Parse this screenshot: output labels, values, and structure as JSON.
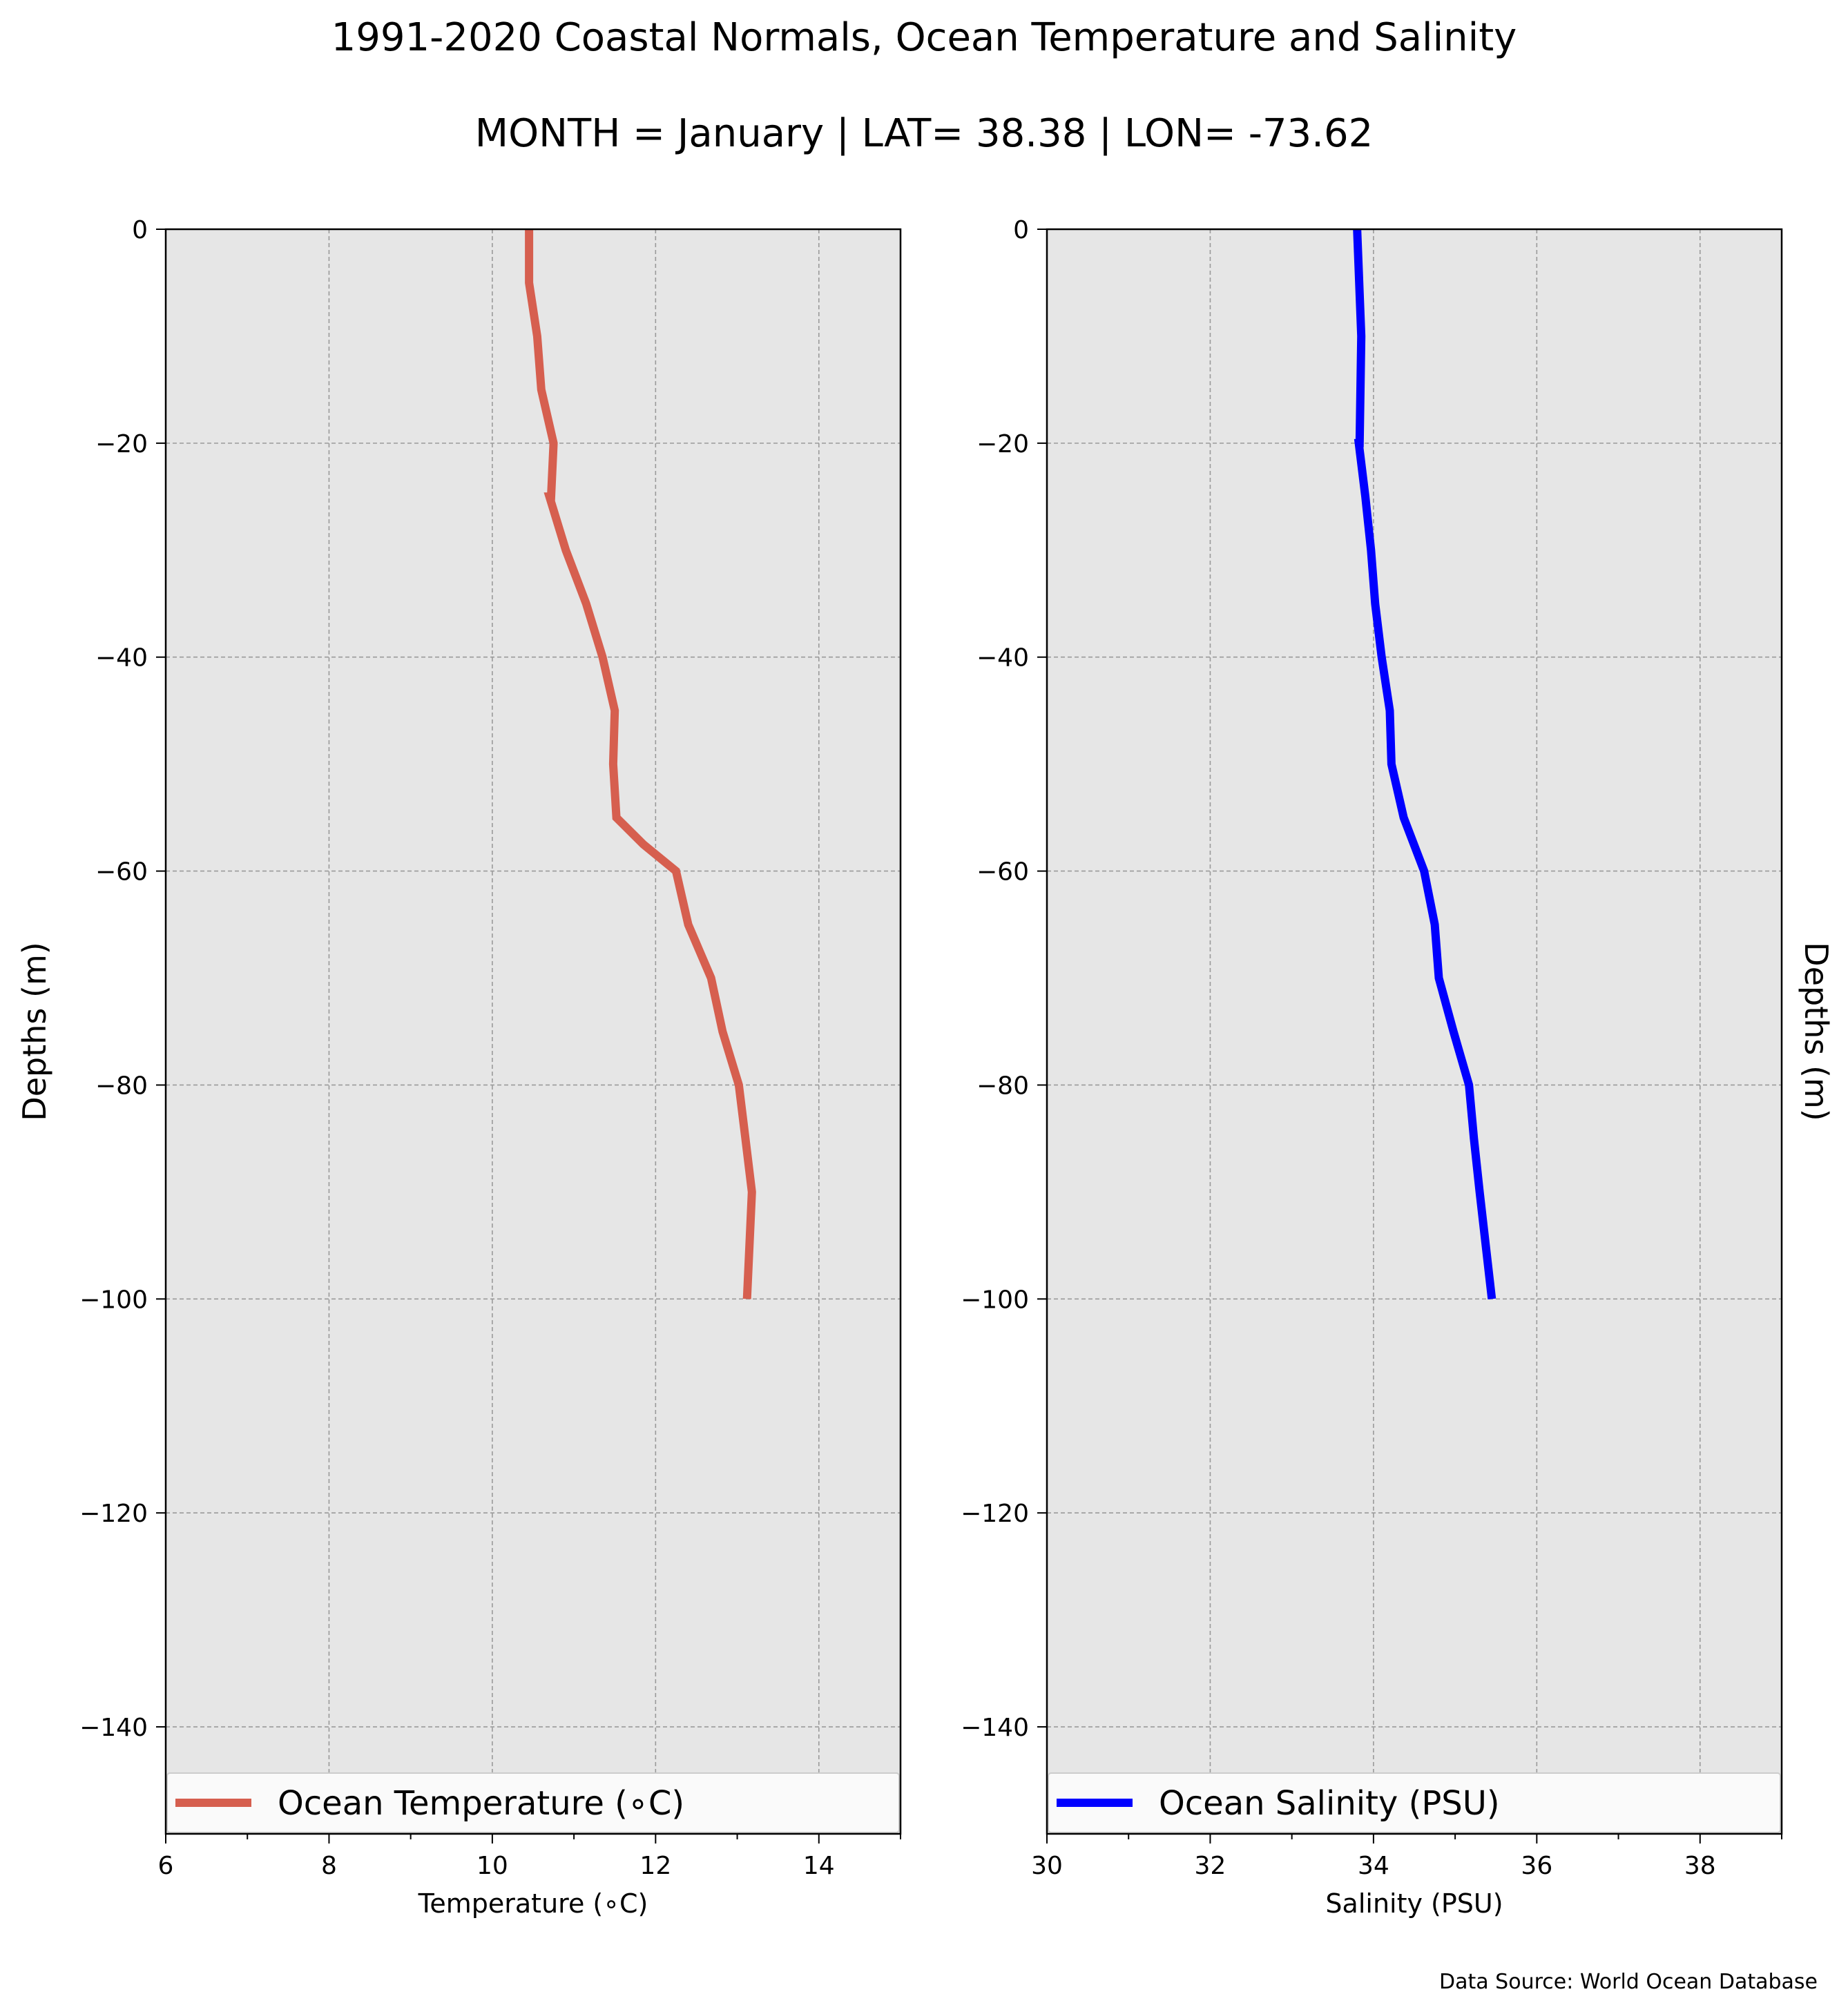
{
  "title": "1991-2020 Coastal Normals, Ocean Temperature and Salinity",
  "subtitle": "MONTH = January | LAT= 38.38 | LON= -73.62",
  "source": "Data Source: World Ocean Database",
  "chart_data": [
    {
      "type": "line",
      "panel": "left",
      "xlabel": "Temperature (∘C)",
      "ylabel": "Depths (m)",
      "xlim": [
        6,
        15
      ],
      "ylim": [
        -150,
        0
      ],
      "xticks": [
        6,
        8,
        10,
        12,
        14
      ],
      "xtick_labels": [
        "6",
        "8",
        "10",
        "12",
        "14"
      ],
      "yticks": [
        0,
        -20,
        -40,
        -60,
        -80,
        -100,
        -120,
        -140
      ],
      "ytick_labels": [
        "0",
        "−20",
        "−40",
        "−60",
        "−80",
        "−100",
        "−120",
        "−140"
      ],
      "grid": true,
      "legend_placement": "lower",
      "series": [
        {
          "name": "Ocean Temperature (∘C)",
          "color": "#d65f4f",
          "x": [
            10.45,
            10.45,
            10.55,
            10.6,
            10.75,
            10.72,
            10.7,
            10.9,
            11.15,
            11.35,
            11.5,
            11.48,
            11.52,
            11.85,
            12.25,
            12.4,
            12.68,
            12.82,
            13.02,
            13.1,
            13.18,
            13.12
          ],
          "y": [
            0,
            -5,
            -10,
            -15,
            -20,
            -25,
            -25,
            -30,
            -35,
            -40,
            -45,
            -50,
            -55,
            -57.5,
            -60,
            -65,
            -70,
            -75,
            -80,
            -85,
            -90,
            -100
          ]
        }
      ]
    },
    {
      "type": "line",
      "panel": "right",
      "xlabel": "Salinity (PSU)",
      "ylabel": "Depths (m)",
      "xlim": [
        30,
        39
      ],
      "ylim": [
        -150,
        0
      ],
      "xticks": [
        30,
        32,
        34,
        36,
        38
      ],
      "xtick_labels": [
        "30",
        "32",
        "34",
        "36",
        "38"
      ],
      "yticks": [
        0,
        -20,
        -40,
        -60,
        -80,
        -100,
        -120,
        -140
      ],
      "ytick_labels": [
        "0",
        "−20",
        "−40",
        "−60",
        "−80",
        "−100",
        "−120",
        "−140"
      ],
      "grid": true,
      "legend_placement": "lower",
      "series": [
        {
          "name": "Ocean Salinity (PSU)",
          "color": "#0000ff",
          "x": [
            33.8,
            33.85,
            33.83,
            33.82,
            33.9,
            33.97,
            34.02,
            34.1,
            34.2,
            34.22,
            34.37,
            34.62,
            34.75,
            34.8,
            34.98,
            35.17,
            35.23,
            35.3,
            35.45
          ],
          "y": [
            0,
            -10,
            -20,
            -20,
            -25,
            -30,
            -35,
            -40,
            -45,
            -50,
            -55,
            -60,
            -65,
            -70,
            -75,
            -80,
            -85,
            -90,
            -100
          ]
        }
      ]
    }
  ]
}
